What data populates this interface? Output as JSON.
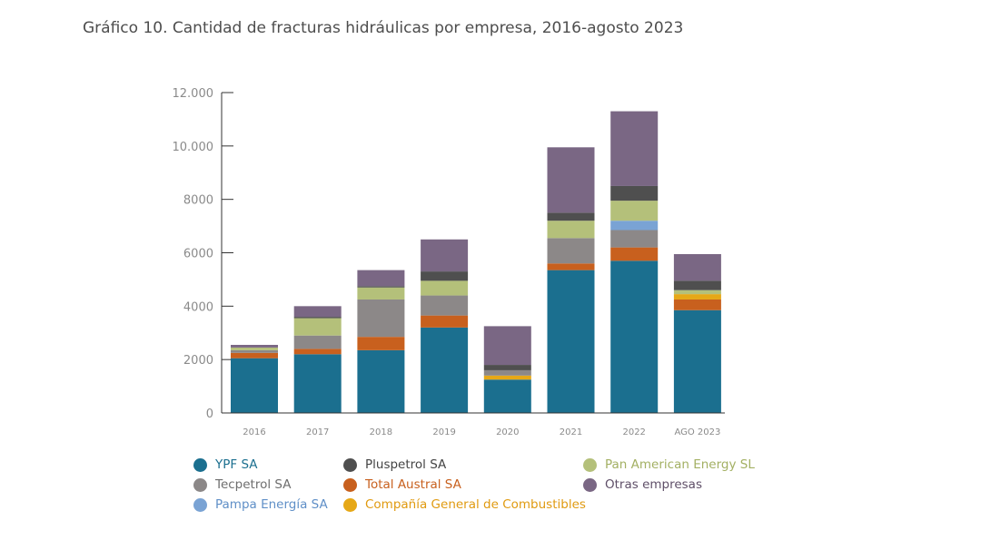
{
  "title": "Gráfico 10. Cantidad de fracturas hidráulicas por empresa, 2016-agosto 2023",
  "chart_data": {
    "type": "bar",
    "stacked": true,
    "title": "Gráfico 10. Cantidad de fracturas hidráulicas por empresa, 2016-agosto 2023",
    "xlabel": "",
    "ylabel": "",
    "categories": [
      "2016",
      "2017",
      "2018",
      "2019",
      "2020",
      "2021",
      "2022",
      "AGO 2023"
    ],
    "ylim": [
      0,
      12000
    ],
    "yticks": [
      0,
      2000,
      4000,
      6000,
      8000,
      10000,
      12000
    ],
    "ytick_labels": [
      "0",
      "2000",
      "4000",
      "6000",
      "8000",
      "10.000",
      "12.000"
    ],
    "grid": false,
    "legend_position": "bottom",
    "series": [
      {
        "name": "YPF SA",
        "color": "#1b6f8f",
        "values": [
          2050,
          2200,
          2350,
          3200,
          1250,
          5350,
          5700,
          3850
        ]
      },
      {
        "name": "Total Austral SA",
        "color": "#c8601e",
        "values": [
          200,
          200,
          500,
          450,
          0,
          250,
          500,
          400
        ]
      },
      {
        "name": "Compañía General de Combustibles",
        "color": "#e6a817",
        "values": [
          0,
          0,
          0,
          0,
          150,
          0,
          0,
          200
        ]
      },
      {
        "name": "Tecpetrol SA",
        "color": "#8c8888",
        "values": [
          100,
          500,
          1400,
          750,
          200,
          950,
          650,
          0
        ]
      },
      {
        "name": "Pampa Energía SA",
        "color": "#7aa3d4",
        "values": [
          0,
          0,
          0,
          0,
          0,
          0,
          350,
          0
        ]
      },
      {
        "name": "Pan American Energy SL",
        "color": "#b4c07a",
        "values": [
          100,
          650,
          450,
          550,
          0,
          650,
          750,
          150
        ]
      },
      {
        "name": "Pluspetrol SA",
        "color": "#4f4f4f",
        "values": [
          0,
          50,
          50,
          350,
          200,
          300,
          550,
          350
        ]
      },
      {
        "name": "Otras empresas",
        "color": "#7a6784",
        "values": [
          100,
          400,
          600,
          1200,
          1450,
          2450,
          2800,
          1000
        ]
      }
    ]
  },
  "legend": [
    {
      "name": "YPF SA",
      "color": "#1b6f8f",
      "text_color": "#1b6f8f"
    },
    {
      "name": "Pluspetrol SA",
      "color": "#4f4f4f",
      "text_color": "#444444"
    },
    {
      "name": "Pan American Energy SL",
      "color": "#b4c07a",
      "text_color": "#a3b063"
    },
    {
      "name": "Tecpetrol SA",
      "color": "#8c8888",
      "text_color": "#6e6e6e"
    },
    {
      "name": "Total Austral SA",
      "color": "#c8601e",
      "text_color": "#c8601e"
    },
    {
      "name": "Otras empresas",
      "color": "#7a6784",
      "text_color": "#5f4f68"
    },
    {
      "name": "Pampa Energía SA",
      "color": "#7aa3d4",
      "text_color": "#5f8fc7"
    },
    {
      "name": "Compañía General de Combustibles",
      "color": "#e6a817",
      "text_color": "#e09a10"
    }
  ]
}
